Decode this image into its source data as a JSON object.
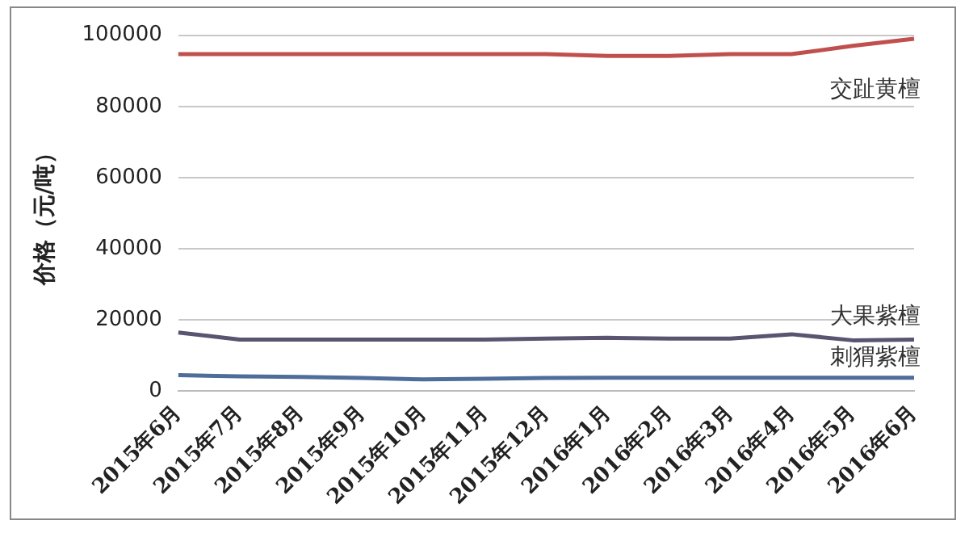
{
  "chart_data": {
    "type": "line",
    "ylabel": "价格（元/吨）",
    "categories": [
      "2015年6月",
      "2015年7月",
      "2015年8月",
      "2015年9月",
      "2015年10月",
      "2015年11月",
      "2015年12月",
      "2016年1月",
      "2016年2月",
      "2016年3月",
      "2016年4月",
      "2016年5月",
      "2016年6月"
    ],
    "series": [
      {
        "name": "交趾黄檀",
        "color": "#c0504d",
        "values": [
          94700,
          94700,
          94700,
          94700,
          94700,
          94700,
          94700,
          94200,
          94200,
          94700,
          94700,
          97000,
          99000
        ]
      },
      {
        "name": "大果紫檀",
        "color": "#5a5470",
        "values": [
          16500,
          14500,
          14500,
          14500,
          14500,
          14500,
          14800,
          15000,
          14800,
          14800,
          16000,
          14300,
          14500
        ]
      },
      {
        "name": "刺猬紫檀",
        "color": "#4f6d9a",
        "values": [
          4500,
          4200,
          4000,
          3700,
          3300,
          3500,
          3700,
          3800,
          3800,
          3800,
          3800,
          3800,
          3800
        ]
      }
    ],
    "ylim": [
      0,
      100000
    ],
    "yticks": [
      0,
      20000,
      40000,
      60000,
      80000,
      100000
    ],
    "grid": "y",
    "legend": false,
    "marker": "none",
    "line_style": "solid"
  }
}
